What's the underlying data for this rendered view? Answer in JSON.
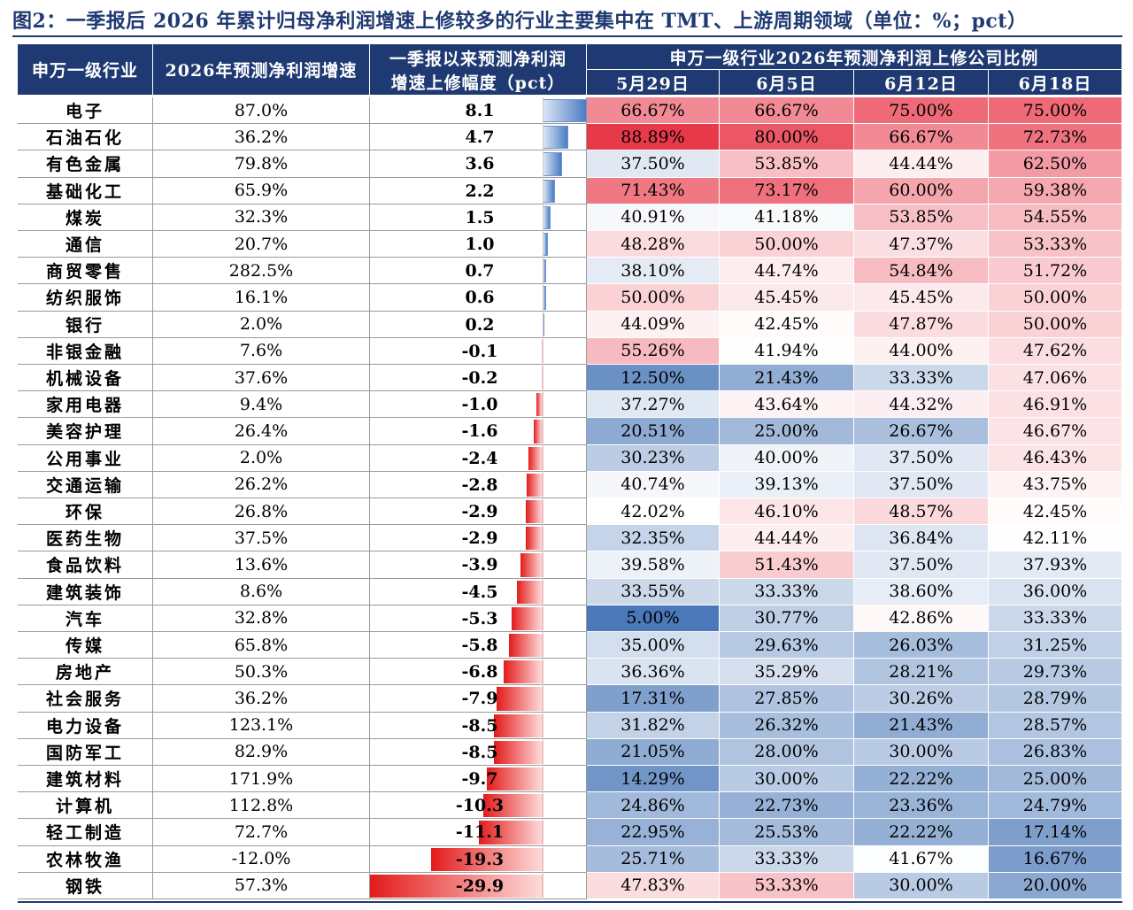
{
  "title": "图2：一季报后 2026 年累计归母净利润增速上修较多的行业主要集中在 TMT、上游周期领域（单位：%；pct）",
  "chart_data": {
    "type": "table",
    "columns": {
      "industry": "申万一级行业",
      "growth": "2026年预测净利润增速",
      "revision_line1": "一季报以来预测净利润",
      "revision_line2": "增速上修幅度（pct）",
      "ratio_group": "申万一级行业2026年预测净利润上修公司比例",
      "dates": [
        "5月29日",
        "6月5日",
        "6月12日",
        "6月18日"
      ]
    },
    "revision_range": [
      -29.9,
      8.1
    ],
    "heat_colors": {
      "high": "#e8394a",
      "mid": "#ffffff",
      "low": "#4a78b8"
    },
    "bar_colors": {
      "positive": "#4a7cc4",
      "negative": "#e31b1b"
    },
    "rows": [
      {
        "industry": "电子",
        "growth": "87.0%",
        "revision": 8.1,
        "revision_label": "8.1",
        "ratios": [
          "66.67%",
          "66.67%",
          "75.00%",
          "75.00%"
        ]
      },
      {
        "industry": "石油石化",
        "growth": "36.2%",
        "revision": 4.7,
        "revision_label": "4.7",
        "ratios": [
          "88.89%",
          "80.00%",
          "66.67%",
          "72.73%"
        ]
      },
      {
        "industry": "有色金属",
        "growth": "79.8%",
        "revision": 3.6,
        "revision_label": "3.6",
        "ratios": [
          "37.50%",
          "53.85%",
          "44.44%",
          "62.50%"
        ]
      },
      {
        "industry": "基础化工",
        "growth": "65.9%",
        "revision": 2.2,
        "revision_label": "2.2",
        "ratios": [
          "71.43%",
          "73.17%",
          "60.00%",
          "59.38%"
        ]
      },
      {
        "industry": "煤炭",
        "growth": "32.3%",
        "revision": 1.5,
        "revision_label": "1.5",
        "ratios": [
          "40.91%",
          "41.18%",
          "53.85%",
          "54.55%"
        ]
      },
      {
        "industry": "通信",
        "growth": "20.7%",
        "revision": 1.0,
        "revision_label": "1.0",
        "ratios": [
          "48.28%",
          "50.00%",
          "47.37%",
          "53.33%"
        ]
      },
      {
        "industry": "商贸零售",
        "growth": "282.5%",
        "revision": 0.7,
        "revision_label": "0.7",
        "ratios": [
          "38.10%",
          "44.74%",
          "54.84%",
          "51.72%"
        ]
      },
      {
        "industry": "纺织服饰",
        "growth": "16.1%",
        "revision": 0.6,
        "revision_label": "0.6",
        "ratios": [
          "50.00%",
          "45.45%",
          "45.45%",
          "50.00%"
        ]
      },
      {
        "industry": "银行",
        "growth": "2.0%",
        "revision": 0.2,
        "revision_label": "0.2",
        "ratios": [
          "44.09%",
          "42.45%",
          "47.87%",
          "50.00%"
        ]
      },
      {
        "industry": "非银金融",
        "growth": "7.6%",
        "revision": -0.1,
        "revision_label": "-0.1",
        "ratios": [
          "55.26%",
          "41.94%",
          "44.00%",
          "47.62%"
        ]
      },
      {
        "industry": "机械设备",
        "growth": "37.6%",
        "revision": -0.2,
        "revision_label": "-0.2",
        "ratios": [
          "12.50%",
          "21.43%",
          "33.33%",
          "47.06%"
        ]
      },
      {
        "industry": "家用电器",
        "growth": "9.4%",
        "revision": -1.0,
        "revision_label": "-1.0",
        "ratios": [
          "37.27%",
          "43.64%",
          "44.32%",
          "46.91%"
        ]
      },
      {
        "industry": "美容护理",
        "growth": "26.4%",
        "revision": -1.6,
        "revision_label": "-1.6",
        "ratios": [
          "20.51%",
          "25.00%",
          "26.67%",
          "46.67%"
        ]
      },
      {
        "industry": "公用事业",
        "growth": "2.0%",
        "revision": -2.4,
        "revision_label": "-2.4",
        "ratios": [
          "30.23%",
          "40.00%",
          "37.50%",
          "46.43%"
        ]
      },
      {
        "industry": "交通运输",
        "growth": "26.2%",
        "revision": -2.8,
        "revision_label": "-2.8",
        "ratios": [
          "40.74%",
          "39.13%",
          "37.50%",
          "43.75%"
        ]
      },
      {
        "industry": "环保",
        "growth": "26.8%",
        "revision": -2.9,
        "revision_label": "-2.9",
        "ratios": [
          "42.02%",
          "46.10%",
          "48.57%",
          "42.45%"
        ]
      },
      {
        "industry": "医药生物",
        "growth": "37.5%",
        "revision": -2.9,
        "revision_label": "-2.9",
        "ratios": [
          "32.35%",
          "44.44%",
          "36.84%",
          "42.11%"
        ]
      },
      {
        "industry": "食品饮料",
        "growth": "13.6%",
        "revision": -3.9,
        "revision_label": "-3.9",
        "ratios": [
          "39.58%",
          "51.43%",
          "37.50%",
          "37.93%"
        ]
      },
      {
        "industry": "建筑装饰",
        "growth": "8.6%",
        "revision": -4.5,
        "revision_label": "-4.5",
        "ratios": [
          "33.55%",
          "33.33%",
          "38.60%",
          "36.00%"
        ]
      },
      {
        "industry": "汽车",
        "growth": "32.8%",
        "revision": -5.3,
        "revision_label": "-5.3",
        "ratios": [
          "5.00%",
          "30.77%",
          "42.86%",
          "33.33%"
        ]
      },
      {
        "industry": "传媒",
        "growth": "65.8%",
        "revision": -5.8,
        "revision_label": "-5.8",
        "ratios": [
          "35.00%",
          "29.63%",
          "26.03%",
          "31.25%"
        ]
      },
      {
        "industry": "房地产",
        "growth": "50.3%",
        "revision": -6.8,
        "revision_label": "-6.8",
        "ratios": [
          "36.36%",
          "35.29%",
          "28.21%",
          "29.73%"
        ]
      },
      {
        "industry": "社会服务",
        "growth": "36.2%",
        "revision": -7.9,
        "revision_label": "-7.9",
        "ratios": [
          "17.31%",
          "27.85%",
          "30.26%",
          "28.79%"
        ]
      },
      {
        "industry": "电力设备",
        "growth": "123.1%",
        "revision": -8.5,
        "revision_label": "-8.5",
        "ratios": [
          "31.82%",
          "26.32%",
          "21.43%",
          "28.57%"
        ]
      },
      {
        "industry": "国防军工",
        "growth": "82.9%",
        "revision": -8.5,
        "revision_label": "-8.5",
        "ratios": [
          "21.05%",
          "28.00%",
          "30.00%",
          "26.83%"
        ]
      },
      {
        "industry": "建筑材料",
        "growth": "171.9%",
        "revision": -9.7,
        "revision_label": "-9.7",
        "ratios": [
          "14.29%",
          "30.00%",
          "22.22%",
          "25.00%"
        ]
      },
      {
        "industry": "计算机",
        "growth": "112.8%",
        "revision": -10.3,
        "revision_label": "-10.3",
        "ratios": [
          "24.86%",
          "22.73%",
          "23.36%",
          "24.79%"
        ]
      },
      {
        "industry": "轻工制造",
        "growth": "72.7%",
        "revision": -11.1,
        "revision_label": "-11.1",
        "ratios": [
          "22.95%",
          "25.53%",
          "22.22%",
          "17.14%"
        ]
      },
      {
        "industry": "农林牧渔",
        "growth": "-12.0%",
        "revision": -19.3,
        "revision_label": "-19.3",
        "ratios": [
          "25.71%",
          "33.33%",
          "41.67%",
          "16.67%"
        ]
      },
      {
        "industry": "钢铁",
        "growth": "57.3%",
        "revision": -29.9,
        "revision_label": "-29.9",
        "ratios": [
          "47.83%",
          "53.33%",
          "30.00%",
          "20.00%"
        ]
      }
    ]
  }
}
